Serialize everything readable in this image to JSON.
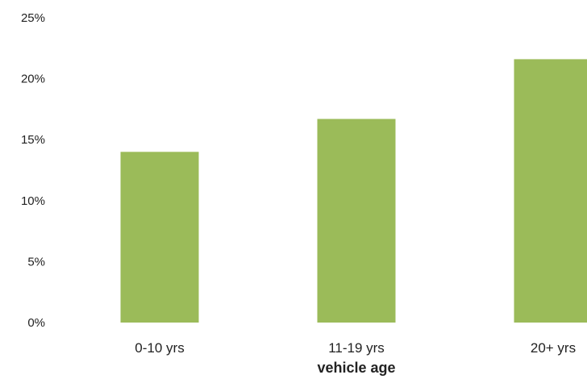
{
  "chart_data": {
    "type": "bar",
    "title": "",
    "xlabel": "vehicle age",
    "ylabel": "",
    "categories": [
      "0-10 yrs",
      "11-19 yrs",
      "20+ yrs"
    ],
    "values": [
      14.0,
      16.7,
      21.6
    ],
    "value_format": "percent",
    "ylim": [
      0,
      25
    ],
    "yticks": [
      "0%",
      "5%",
      "10%",
      "15%",
      "20%",
      "25%"
    ],
    "ytick_values": [
      0,
      5,
      10,
      15,
      20,
      25
    ],
    "grid": false,
    "legend": "none",
    "bar_color": "#9bbb59"
  }
}
